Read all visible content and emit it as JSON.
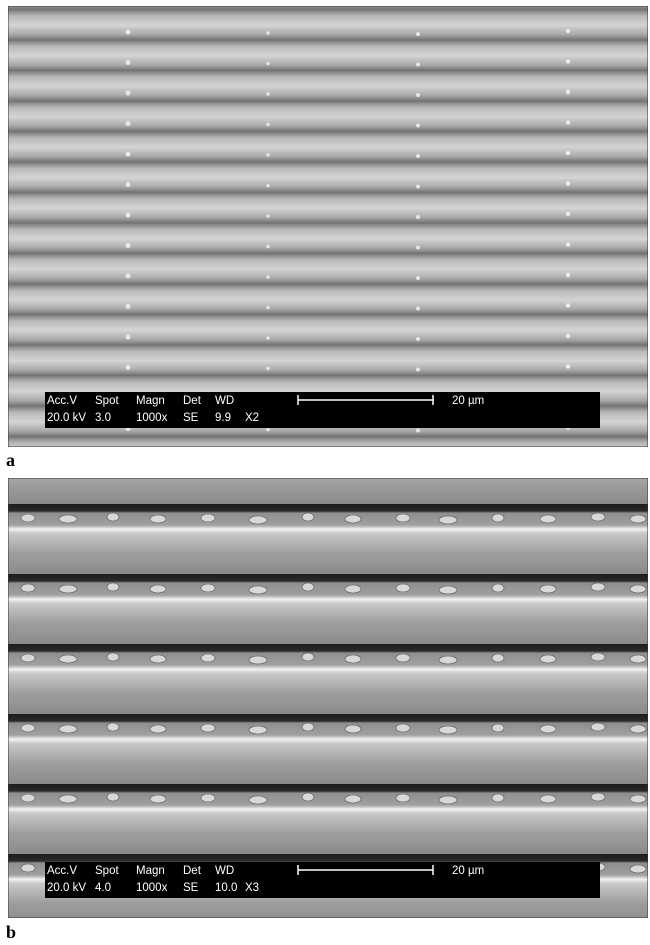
{
  "panels": [
    {
      "label": "a",
      "headers": [
        "Acc.V",
        "Spot",
        "Magn",
        "Det",
        "WD"
      ],
      "values": [
        "20.0 kV",
        "3.0",
        "1000x",
        "SE",
        "9.9",
        "X2"
      ],
      "scale": "20 µm"
    },
    {
      "label": "b",
      "headers": [
        "Acc.V",
        "Spot",
        "Magn",
        "Det",
        "WD"
      ],
      "values": [
        "20.0 kV",
        "4.0",
        "1000x",
        "SE",
        "10.0",
        "X3"
      ],
      "scale": "20 µm"
    }
  ]
}
